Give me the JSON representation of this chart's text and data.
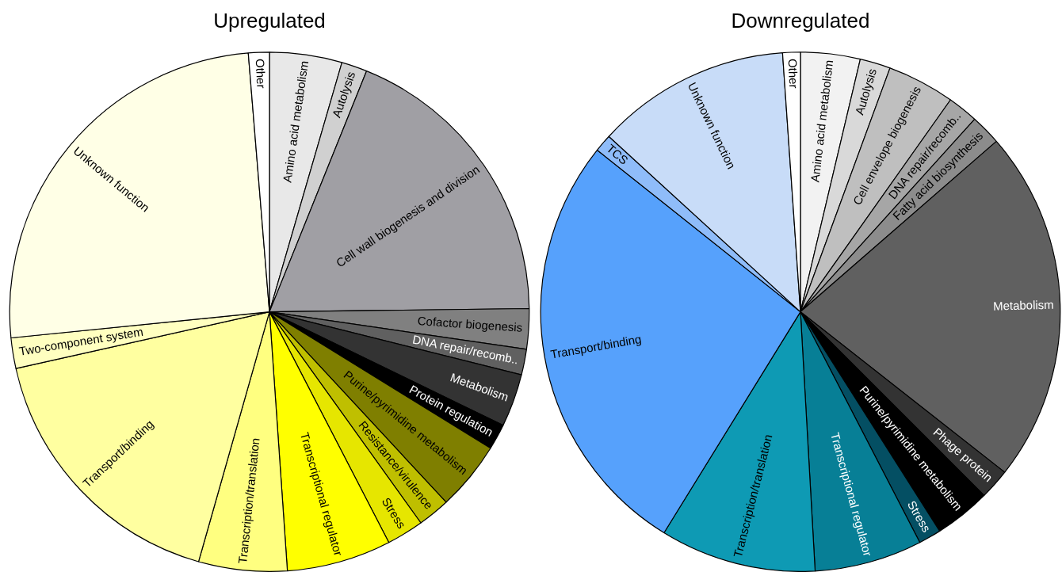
{
  "chart_data": [
    {
      "type": "pie",
      "title": "Upregulated",
      "categories": [
        "Amino acid metabolism",
        "Autolysis",
        "Cell wall biogenesis and division",
        "Cofactor biogenesis",
        "DNA repair/recomb..",
        "Metabolism",
        "Protein regulation",
        "Purine/pyrimidine metabolism",
        "Resistance/virulence",
        "Stress",
        "Transcriptional regulator",
        "Transcription/translation",
        "Transport/binding",
        "Two-component system",
        "Unknown function",
        "Other"
      ],
      "values": [
        4.5,
        1.6,
        18.7,
        2.5,
        1.6,
        3.3,
        1.6,
        4.3,
        2.0,
        2.3,
        6.5,
        5.5,
        17.1,
        1.9,
        25.3,
        1.3
      ],
      "colors": [
        "#e8e8e8",
        "#d0d0d0",
        "#a09fa4",
        "#808080",
        "#606060",
        "#333333",
        "#000000",
        "#7f7f00",
        "#bfbf00",
        "#e6e600",
        "#ffff00",
        "#ffff80",
        "#ffffa0",
        "#ffffc0",
        "#ffffe6",
        "#ffffff"
      ]
    },
    {
      "type": "pie",
      "title": "Downregulated",
      "categories": [
        "Amino acid metabolism",
        "Autolysis",
        "Cell envelope biogenesis",
        "DNA repair/recomb..",
        "Fatty acid biosynthesis",
        "Metabolism",
        "Phage protein",
        "Purine/pyrimidine metabolism",
        "Stress",
        "Transcriptional regulator",
        "Transcription/translation",
        "Transport/binding",
        "TCS",
        "Unknown function",
        "Other"
      ],
      "values": [
        3.7,
        1.9,
        4.2,
        1.9,
        1.9,
        22.0,
        1.9,
        3.5,
        1.4,
        6.7,
        9.7,
        26.9,
        1.1,
        12.1,
        1.1
      ],
      "colors": [
        "#f2f2f2",
        "#d9d9d9",
        "#bfbfbf",
        "#a6a6a6",
        "#8c8c8c",
        "#606060",
        "#333333",
        "#000000",
        "#044f63",
        "#077f96",
        "#0e9ab4",
        "#56a1fc",
        "#8fbcf9",
        "#c8dcf8",
        "#ffffff"
      ]
    }
  ]
}
